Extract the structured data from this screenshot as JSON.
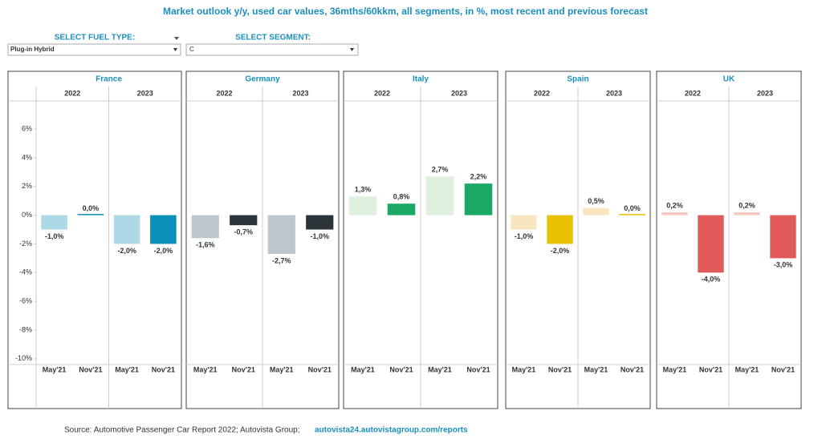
{
  "chart_data": {
    "type": "bar",
    "title": "Market outlook y/y, used car values, 36mths/60kkm, all segments, in %, most recent and previous forecast",
    "filters": [
      {
        "label": "SELECT FUEL TYPE:",
        "value": "Plug-in Hybrid"
      },
      {
        "label": "SELECT SEGMENT:",
        "value": "C"
      }
    ],
    "ylim": [
      -10.4,
      7.9
    ],
    "yticks": [
      {
        "value": 6,
        "label": "6%"
      },
      {
        "value": 4,
        "label": "4%"
      },
      {
        "value": 2,
        "label": "2%"
      },
      {
        "value": 0,
        "label": "0%"
      },
      {
        "value": -2,
        "label": "-2%"
      },
      {
        "value": -4,
        "label": "-4%"
      },
      {
        "value": -6,
        "label": "-6%"
      },
      {
        "value": -8,
        "label": "-8%"
      },
      {
        "value": -10,
        "label": "-10%"
      }
    ],
    "grid": false,
    "panels": [
      {
        "title": "France",
        "groups": [
          "2022",
          "2023"
        ],
        "categories": [
          "May'21",
          "Nov'21",
          "May'21",
          "Nov'21"
        ],
        "values": [
          -1.0,
          0.0,
          -2.0,
          -2.0
        ],
        "value_labels": [
          "-1,0%",
          "0,0%",
          "-2,0%",
          "-2,0%"
        ],
        "colors": [
          "#add8e6",
          "#0a8fb8",
          "#add8e6",
          "#0a8fb8"
        ]
      },
      {
        "title": "Germany",
        "groups": [
          "2022",
          "2023"
        ],
        "categories": [
          "May'21",
          "Nov'21",
          "May'21",
          "Nov'21"
        ],
        "values": [
          -1.6,
          -0.7,
          -2.7,
          -1.0
        ],
        "value_labels": [
          "-1,6%",
          "-0,7%",
          "-2,7%",
          "-1,0%"
        ],
        "colors": [
          "#bcc6cc",
          "#2a3439",
          "#bcc6cc",
          "#2a3439"
        ]
      },
      {
        "title": "Italy",
        "groups": [
          "2022",
          "2023"
        ],
        "categories": [
          "May'21",
          "Nov'21",
          "May'21",
          "Nov'21"
        ],
        "values": [
          1.3,
          0.8,
          2.7,
          2.2
        ],
        "value_labels": [
          "1,3%",
          "0,8%",
          "2,7%",
          "2,2%"
        ],
        "colors": [
          "#dff0e0",
          "#1aa864",
          "#dff0e0",
          "#1aa864"
        ]
      },
      {
        "title": "Spain",
        "groups": [
          "2022",
          "2023"
        ],
        "categories": [
          "May'21",
          "Nov'21",
          "May'21",
          "Nov'21"
        ],
        "values": [
          -1.0,
          -2.0,
          0.5,
          0.0
        ],
        "value_labels": [
          "-1,0%",
          "-2,0%",
          "0,5%",
          "0,0%"
        ],
        "colors": [
          "#f8e6c0",
          "#e8c000",
          "#f8e6c0",
          "#e8c000"
        ]
      },
      {
        "title": "UK",
        "groups": [
          "2022",
          "2023"
        ],
        "categories": [
          "May'21",
          "Nov'21",
          "May'21",
          "Nov'21"
        ],
        "values": [
          0.2,
          -4.0,
          0.2,
          -3.0
        ],
        "value_labels": [
          "0,2%",
          "-4,0%",
          "0,2%",
          "-3,0%"
        ],
        "colors": [
          "#f4c9c0",
          "#e05a5a",
          "#f4c9c0",
          "#e05a5a"
        ]
      }
    ],
    "source": "Source: Automotive Passenger Car Report 2022; Autovista Group;",
    "source_link": "autovista24.autovistagroup.com/reports"
  }
}
